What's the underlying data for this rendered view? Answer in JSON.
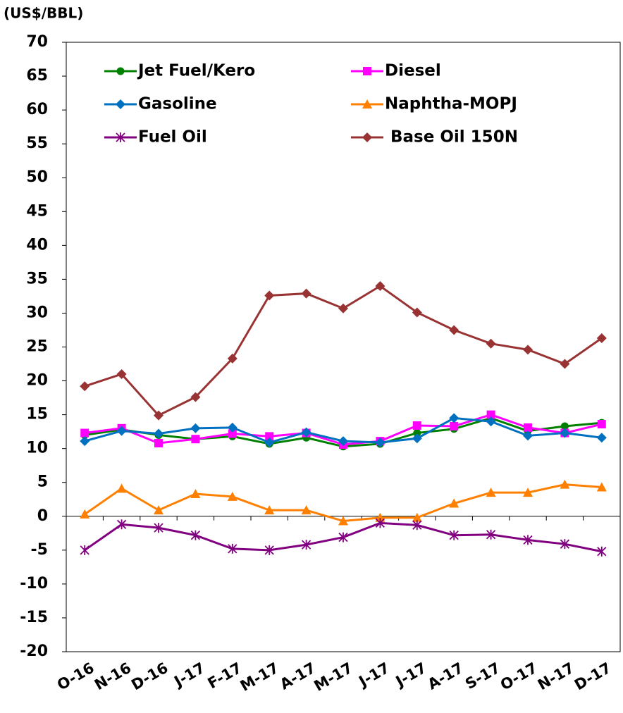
{
  "chart_data": {
    "type": "line",
    "y_axis_label": "(US$/BBL)",
    "categories": [
      "O-16",
      "N-16",
      "D-16",
      "J-17",
      "F-17",
      "M-17",
      "A-17",
      "M-17",
      "J-17",
      "J-17",
      "A-17",
      "S-17",
      "O-17",
      "N-17",
      "D-17"
    ],
    "series": [
      {
        "name": "Jet Fuel/Kero",
        "color": "#008000",
        "marker": "circle",
        "values": [
          12.0,
          12.8,
          12.0,
          11.4,
          11.8,
          10.7,
          11.6,
          10.3,
          10.7,
          12.3,
          12.9,
          14.5,
          12.6,
          13.3,
          13.8
        ]
      },
      {
        "name": "Diesel",
        "color": "#ff00ff",
        "marker": "square",
        "values": [
          12.3,
          13.0,
          10.8,
          11.4,
          12.2,
          11.8,
          12.3,
          10.6,
          11.1,
          13.4,
          13.3,
          15.0,
          13.1,
          12.3,
          13.6
        ]
      },
      {
        "name": "Gasoline",
        "color": "#0070c0",
        "marker": "diamond",
        "values": [
          11.1,
          12.6,
          12.2,
          13.0,
          13.1,
          10.9,
          12.4,
          11.1,
          10.9,
          11.5,
          14.5,
          14.0,
          11.9,
          12.3,
          11.6
        ]
      },
      {
        "name": "Naphtha-MOPJ",
        "color": "#ff8000",
        "marker": "triangle",
        "values": [
          0.3,
          4.1,
          0.9,
          3.3,
          2.9,
          0.9,
          0.9,
          -0.7,
          -0.2,
          -0.2,
          1.9,
          3.5,
          3.5,
          4.7,
          4.3
        ]
      },
      {
        "name": "Fuel Oil",
        "color": "#800080",
        "marker": "star",
        "values": [
          -5.0,
          -1.2,
          -1.7,
          -2.8,
          -4.8,
          -5.0,
          -4.2,
          -3.1,
          -1.0,
          -1.3,
          -2.8,
          -2.7,
          -3.5,
          -4.1,
          -5.2
        ]
      },
      {
        "name": " Base Oil 150N",
        "color": "#993333",
        "marker": "diamond",
        "values": [
          19.2,
          21.0,
          14.9,
          17.6,
          23.3,
          32.6,
          32.9,
          30.7,
          34.0,
          30.1,
          27.5,
          25.5,
          24.6,
          22.5,
          26.3
        ]
      }
    ],
    "ylim": [
      -20,
      70
    ],
    "yticks": [
      -20,
      -15,
      -10,
      -5,
      0,
      5,
      10,
      15,
      20,
      25,
      30,
      35,
      40,
      45,
      50,
      55,
      60,
      65,
      70
    ],
    "legend": "top"
  }
}
